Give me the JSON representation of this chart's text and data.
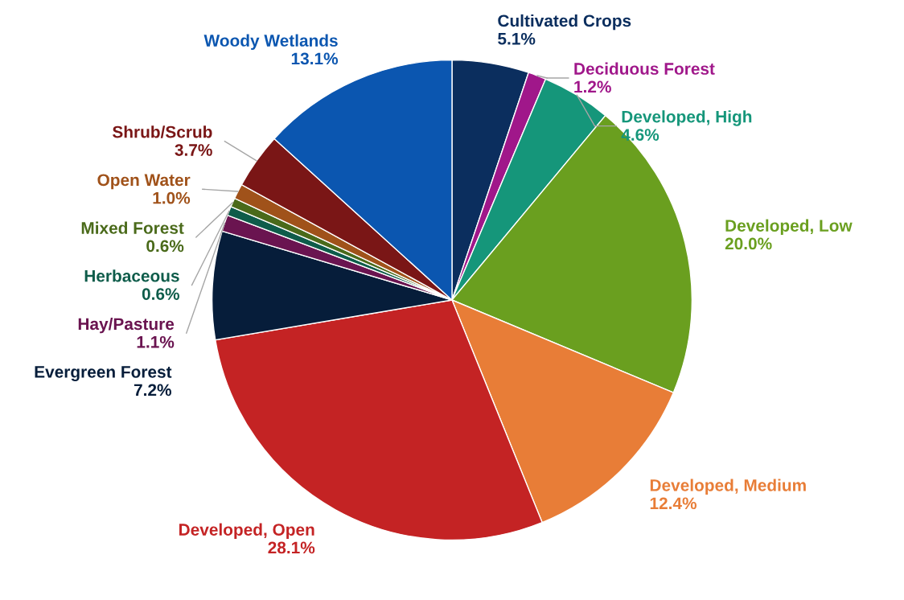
{
  "chart_data": {
    "type": "pie",
    "categories": [
      "Cultivated Crops",
      "Deciduous Forest",
      "Developed, High",
      "Developed, Low",
      "Developed, Medium",
      "Developed, Open",
      "Evergreen Forest",
      "Hay/Pasture",
      "Herbaceous",
      "Mixed Forest",
      "Open Water",
      "Shrub/Scrub",
      "Woody Wetlands"
    ],
    "values": [
      5.1,
      1.2,
      4.6,
      20.0,
      12.4,
      28.1,
      7.2,
      1.1,
      0.6,
      0.6,
      1.0,
      3.7,
      13.1
    ],
    "value_labels": [
      "5.1%",
      "1.2%",
      "4.6%",
      "20.0%",
      "12.4%",
      "28.1%",
      "7.2%",
      "1.1%",
      "0.6%",
      "0.6%",
      "1.0%",
      "3.7%",
      "13.1%"
    ],
    "colors": [
      "#0b2e5e",
      "#a0178a",
      "#15967a",
      "#6a9f1f",
      "#e87d37",
      "#c42324",
      "#061d3a",
      "#6a1450",
      "#0e5c4a",
      "#4a6a1a",
      "#a0521a",
      "#7a1616",
      "#0b56b0"
    ],
    "legend": false
  }
}
